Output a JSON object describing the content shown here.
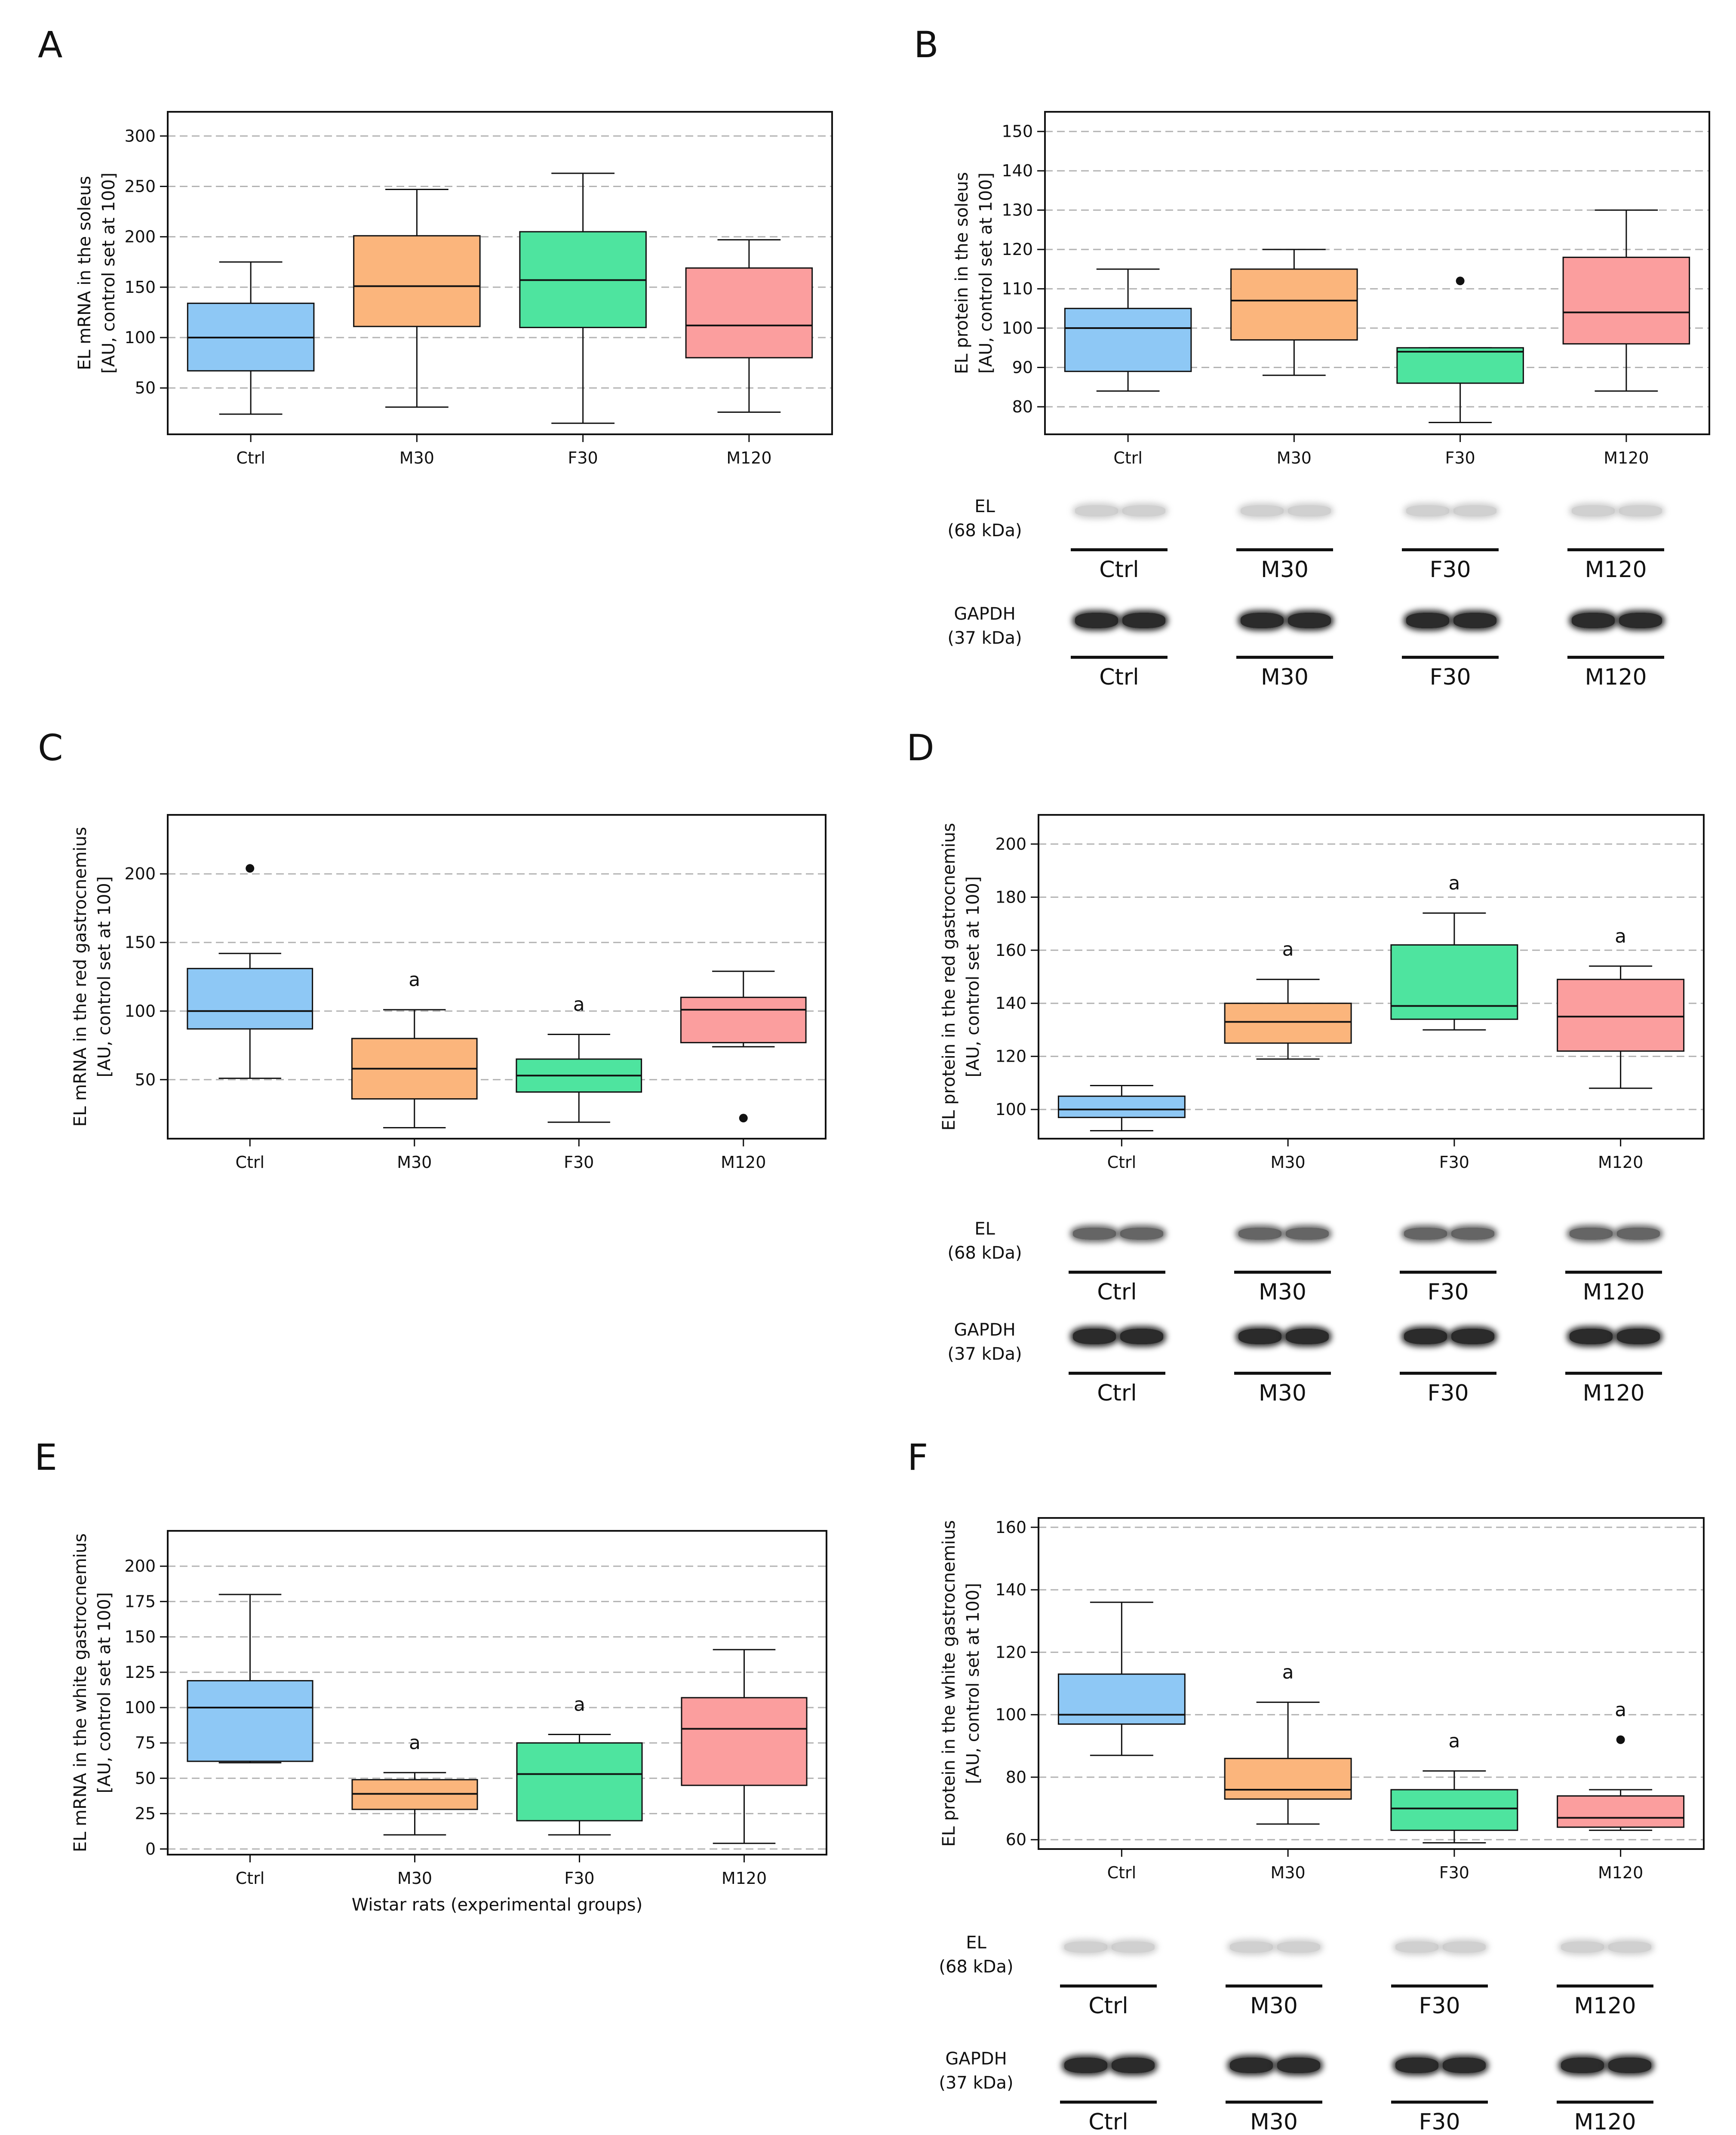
{
  "panels": [
    {
      "letter": "A",
      "ylabel": [
        "EL mRNA in the soleus",
        "[AU, control set at 100]"
      ],
      "xlabel": ""
    },
    {
      "letter": "B",
      "ylabel": [
        "EL protein in the soleus",
        "[AU, control set at 100]"
      ],
      "xlabel": ""
    },
    {
      "letter": "C",
      "ylabel": [
        "EL mRNA in the red gastrocnemius",
        "[AU, control set at 100]"
      ],
      "xlabel": ""
    },
    {
      "letter": "D",
      "ylabel": [
        "EL protein in the red gastrocnemius",
        "[AU, control set at 100]"
      ],
      "xlabel": ""
    },
    {
      "letter": "E",
      "ylabel": [
        "EL mRNA in the white gastrocnemius",
        "[AU, control set at 100]"
      ],
      "xlabel": "Wistar rats (experimental groups)"
    },
    {
      "letter": "F",
      "ylabel": [
        "EL protein in the white gastrocnemius",
        "[AU, control set at 100]"
      ],
      "xlabel": ""
    }
  ],
  "colors": {
    "Ctrl": "#8ec8f5",
    "M30": "#fbb57c",
    "F30": "#4ee49f",
    "M120": "#fb9e9e",
    "grid": "#b3b3b3",
    "axis": "#111111"
  },
  "chart_data": [
    {
      "panel": "A",
      "type": "box",
      "categories": [
        "Ctrl",
        "M30",
        "F30",
        "M120"
      ],
      "yticks": [
        50,
        100,
        150,
        200,
        250,
        300
      ],
      "ylim": [
        4,
        324
      ],
      "grid": true,
      "boxes": [
        {
          "group": "Ctrl",
          "whisker_low": 24,
          "q1": 67,
          "median": 100,
          "q3": 134,
          "whisker_high": 175,
          "outliers": [],
          "annotation": ""
        },
        {
          "group": "M30",
          "whisker_low": 31,
          "q1": 111,
          "median": 151,
          "q3": 201,
          "whisker_high": 247,
          "outliers": [],
          "annotation": ""
        },
        {
          "group": "F30",
          "whisker_low": 15,
          "q1": 110,
          "median": 157,
          "q3": 205,
          "whisker_high": 263,
          "outliers": [],
          "annotation": ""
        },
        {
          "group": "M120",
          "whisker_low": 26,
          "q1": 80,
          "median": 112,
          "q3": 169,
          "whisker_high": 197,
          "outliers": [],
          "annotation": ""
        }
      ]
    },
    {
      "panel": "B",
      "type": "box",
      "categories": [
        "Ctrl",
        "M30",
        "F30",
        "M120"
      ],
      "yticks": [
        80,
        90,
        100,
        110,
        120,
        130,
        140,
        150
      ],
      "ylim": [
        73,
        155
      ],
      "grid": true,
      "boxes": [
        {
          "group": "Ctrl",
          "whisker_low": 84,
          "q1": 89,
          "median": 100,
          "q3": 105,
          "whisker_high": 115,
          "outliers": [],
          "annotation": ""
        },
        {
          "group": "M30",
          "whisker_low": 88,
          "q1": 97,
          "median": 107,
          "q3": 115,
          "whisker_high": 120,
          "outliers": [],
          "annotation": ""
        },
        {
          "group": "F30",
          "whisker_low": 76,
          "q1": 86,
          "median": 94,
          "q3": 95,
          "whisker_high": 95,
          "outliers": [
            112
          ],
          "annotation": ""
        },
        {
          "group": "M120",
          "whisker_low": 84,
          "q1": 96,
          "median": 104,
          "q3": 118,
          "whisker_high": 130,
          "outliers": [],
          "annotation": ""
        }
      ]
    },
    {
      "panel": "C",
      "type": "box",
      "categories": [
        "Ctrl",
        "M30",
        "F30",
        "M120"
      ],
      "yticks": [
        50,
        100,
        150,
        200
      ],
      "ylim": [
        7,
        243
      ],
      "grid": true,
      "boxes": [
        {
          "group": "Ctrl",
          "whisker_low": 51,
          "q1": 87,
          "median": 100,
          "q3": 131,
          "whisker_high": 142,
          "outliers": [
            204
          ],
          "annotation": ""
        },
        {
          "group": "M30",
          "whisker_low": 15,
          "q1": 36,
          "median": 58,
          "q3": 80,
          "whisker_high": 101,
          "outliers": [],
          "annotation": "a"
        },
        {
          "group": "F30",
          "whisker_low": 19,
          "q1": 41,
          "median": 53,
          "q3": 65,
          "whisker_high": 83,
          "outliers": [],
          "annotation": "a"
        },
        {
          "group": "M120",
          "whisker_low": 74,
          "q1": 77,
          "median": 101,
          "q3": 110,
          "whisker_high": 129,
          "outliers": [
            22
          ],
          "annotation": ""
        }
      ]
    },
    {
      "panel": "D",
      "type": "box",
      "categories": [
        "Ctrl",
        "M30",
        "F30",
        "M120"
      ],
      "yticks": [
        100,
        120,
        140,
        160,
        180,
        200
      ],
      "ylim": [
        89,
        211
      ],
      "grid": true,
      "boxes": [
        {
          "group": "Ctrl",
          "whisker_low": 92,
          "q1": 97,
          "median": 100,
          "q3": 105,
          "whisker_high": 109,
          "outliers": [],
          "annotation": ""
        },
        {
          "group": "M30",
          "whisker_low": 119,
          "q1": 125,
          "median": 133,
          "q3": 140,
          "whisker_high": 149,
          "outliers": [],
          "annotation": "a"
        },
        {
          "group": "F30",
          "whisker_low": 130,
          "q1": 134,
          "median": 139,
          "q3": 162,
          "whisker_high": 174,
          "outliers": [],
          "annotation": "a"
        },
        {
          "group": "M120",
          "whisker_low": 108,
          "q1": 122,
          "median": 135,
          "q3": 149,
          "whisker_high": 154,
          "outliers": [],
          "annotation": "a"
        }
      ]
    },
    {
      "panel": "E",
      "type": "box",
      "categories": [
        "Ctrl",
        "M30",
        "F30",
        "M120"
      ],
      "yticks": [
        0,
        25,
        50,
        75,
        100,
        125,
        150,
        175,
        200
      ],
      "ylim": [
        -4,
        225
      ],
      "grid": true,
      "boxes": [
        {
          "group": "Ctrl",
          "whisker_low": 61,
          "q1": 62,
          "median": 100,
          "q3": 119,
          "whisker_high": 180,
          "outliers": [],
          "annotation": ""
        },
        {
          "group": "M30",
          "whisker_low": 10,
          "q1": 28,
          "median": 39,
          "q3": 49,
          "whisker_high": 54,
          "outliers": [],
          "annotation": "a"
        },
        {
          "group": "F30",
          "whisker_low": 10,
          "q1": 20,
          "median": 53,
          "q3": 75,
          "whisker_high": 81,
          "outliers": [],
          "annotation": "a"
        },
        {
          "group": "M120",
          "whisker_low": 4,
          "q1": 45,
          "median": 85,
          "q3": 107,
          "whisker_high": 141,
          "outliers": [],
          "annotation": ""
        }
      ]
    },
    {
      "panel": "F",
      "type": "box",
      "categories": [
        "Ctrl",
        "M30",
        "F30",
        "M120"
      ],
      "yticks": [
        60,
        80,
        100,
        120,
        140,
        160
      ],
      "ylim": [
        57,
        163
      ],
      "grid": true,
      "boxes": [
        {
          "group": "Ctrl",
          "whisker_low": 87,
          "q1": 97,
          "median": 100,
          "q3": 113,
          "whisker_high": 136,
          "outliers": [],
          "annotation": ""
        },
        {
          "group": "M30",
          "whisker_low": 65,
          "q1": 73,
          "median": 76,
          "q3": 86,
          "whisker_high": 104,
          "outliers": [],
          "annotation": "a"
        },
        {
          "group": "F30",
          "whisker_low": 59,
          "q1": 63,
          "median": 70,
          "q3": 76,
          "whisker_high": 82,
          "outliers": [],
          "annotation": "a"
        },
        {
          "group": "M120",
          "whisker_low": 63,
          "q1": 64,
          "median": 67,
          "q3": 74,
          "whisker_high": 76,
          "outliers": [
            92
          ],
          "annotation": "a"
        }
      ]
    }
  ],
  "blots": [
    {
      "panel": "B",
      "rows": [
        {
          "label_line1": "EL",
          "label_line2": "(68 kDa)",
          "lanes": [
            "Ctrl",
            "M30",
            "F30",
            "M120"
          ],
          "intensity": "faint"
        },
        {
          "label_line1": "GAPDH",
          "label_line2": "(37 kDa)",
          "lanes": [
            "Ctrl",
            "M30",
            "F30",
            "M120"
          ],
          "intensity": "strong"
        }
      ]
    },
    {
      "panel": "D",
      "rows": [
        {
          "label_line1": "EL",
          "label_line2": "(68 kDa)",
          "lanes": [
            "Ctrl",
            "M30",
            "F30",
            "M120"
          ],
          "intensity": "medium"
        },
        {
          "label_line1": "GAPDH",
          "label_line2": "(37 kDa)",
          "lanes": [
            "Ctrl",
            "M30",
            "F30",
            "M120"
          ],
          "intensity": "strong"
        }
      ]
    },
    {
      "panel": "F",
      "rows": [
        {
          "label_line1": "EL",
          "label_line2": "(68 kDa)",
          "lanes": [
            "Ctrl",
            "M30",
            "F30",
            "M120"
          ],
          "intensity": "faint"
        },
        {
          "label_line1": "GAPDH",
          "label_line2": "(37 kDa)",
          "lanes": [
            "Ctrl",
            "M30",
            "F30",
            "M120"
          ],
          "intensity": "strong"
        }
      ]
    }
  ]
}
